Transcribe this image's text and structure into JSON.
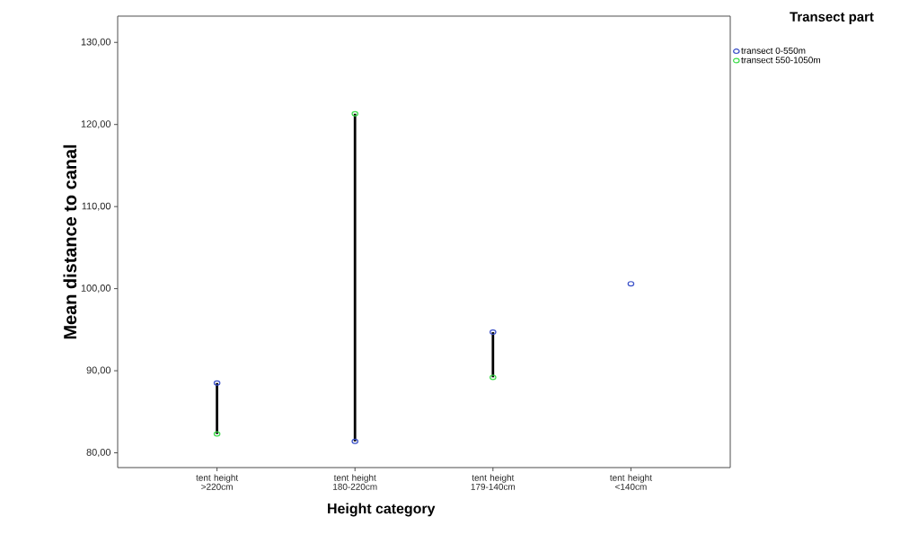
{
  "chart_data": {
    "type": "scatter",
    "xlabel": "Height category",
    "ylabel": "Mean distance to canal",
    "legend_title": "Transect part",
    "categories": [
      "tent height >220cm",
      "tent height 180-220cm",
      "tent height 179-140cm",
      "tent height <140cm"
    ],
    "series": [
      {
        "type": "bar",
        "color": "#000000",
        "base": [
          82.3,
          81.4,
          89.2,
          null
        ],
        "values": [
          6.2,
          39.9,
          5.5,
          null
        ]
      },
      {
        "name": "transect 0-550m",
        "color": "#3a50c8",
        "values": [
          88.5,
          81.4,
          94.7,
          100.6
        ]
      },
      {
        "name": "transect 550-1050m",
        "color": "#3ddc4a",
        "values": [
          82.3,
          121.3,
          89.2,
          null
        ]
      }
    ],
    "ylim": [
      78.2,
      133.2
    ],
    "yticks": [
      {
        "value": 80,
        "label": "80,00"
      },
      {
        "value": 90,
        "label": "90,00"
      },
      {
        "value": 100,
        "label": "100,00"
      },
      {
        "value": 110,
        "label": "110,00"
      },
      {
        "value": 120,
        "label": "120,00"
      },
      {
        "value": 130,
        "label": "130,00"
      }
    ],
    "marker": "circle",
    "legend": "top right",
    "grid": false
  }
}
